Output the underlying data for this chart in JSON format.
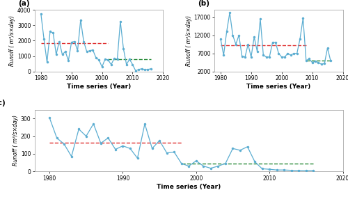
{
  "panel_a": {
    "label": "(a)",
    "years": [
      1980,
      1981,
      1982,
      1983,
      1984,
      1985,
      1986,
      1987,
      1988,
      1989,
      1990,
      1991,
      1992,
      1993,
      1994,
      1995,
      1996,
      1997,
      1998,
      1999,
      2000,
      2001,
      2002,
      2003,
      2004,
      2005,
      2006,
      2007,
      2008,
      2009,
      2010,
      2011,
      2012,
      2013,
      2014,
      2015,
      2016
    ],
    "values": [
      3750,
      2100,
      600,
      2600,
      2500,
      1100,
      1950,
      1100,
      1300,
      700,
      1900,
      1950,
      1350,
      3350,
      1950,
      1300,
      1350,
      1400,
      900,
      750,
      300,
      800,
      750,
      450,
      850,
      800,
      3250,
      1500,
      450,
      800,
      450,
      50,
      130,
      180,
      110,
      130,
      180
    ],
    "red_line_x": [
      1980,
      2002
    ],
    "red_line_y": [
      1850,
      1850
    ],
    "green_line_x": [
      2002,
      2016
    ],
    "green_line_y": [
      820,
      820
    ],
    "ylabel": "Runoff ( m³/s×day)",
    "xlabel": "Time series (Year)",
    "ylim": [
      0,
      4000
    ],
    "yticks": [
      0,
      1000,
      2000,
      3000,
      4000
    ],
    "xlim": [
      1978,
      2020
    ],
    "xticks": [
      1980,
      1990,
      2000,
      2010,
      2020
    ]
  },
  "panel_b": {
    "label": "(b)",
    "years": [
      1980,
      1981,
      1982,
      1983,
      1984,
      1985,
      1986,
      1987,
      1988,
      1989,
      1990,
      1991,
      1992,
      1993,
      1994,
      1995,
      1996,
      1997,
      1998,
      1999,
      2000,
      2001,
      2002,
      2003,
      2004,
      2005,
      2006,
      2007,
      2008,
      2009,
      2010,
      2011,
      2012,
      2013,
      2014,
      2015,
      2016
    ],
    "values": [
      11000,
      6500,
      13000,
      18200,
      12000,
      9500,
      12000,
      6200,
      6000,
      9500,
      6000,
      11500,
      7500,
      16500,
      6500,
      6000,
      6000,
      10000,
      10000,
      7000,
      6000,
      6000,
      7000,
      6500,
      7000,
      7000,
      11000,
      16700,
      5000,
      5500,
      4500,
      4800,
      4500,
      4000,
      4200,
      8500,
      5000
    ],
    "red_line_x": [
      1980,
      2008
    ],
    "red_line_y": [
      9200,
      9200
    ],
    "green_line_x": [
      2008,
      2016
    ],
    "green_line_y": [
      5000,
      5000
    ],
    "ylabel": "Runoff ( m³/s×day)",
    "xlabel": "Time series (Year)",
    "ylim": [
      2000,
      19000
    ],
    "yticks": [
      2000,
      7000,
      12000,
      17000
    ],
    "xlim": [
      1978,
      2020
    ],
    "xticks": [
      1980,
      1990,
      2000,
      2010,
      2020
    ]
  },
  "panel_c": {
    "label": "(c)",
    "years": [
      1980,
      1981,
      1982,
      1983,
      1984,
      1985,
      1986,
      1987,
      1988,
      1989,
      1990,
      1991,
      1992,
      1993,
      1994,
      1995,
      1996,
      1997,
      1998,
      1999,
      2000,
      2001,
      2002,
      2003,
      2004,
      2005,
      2006,
      2007,
      2008,
      2009,
      2010,
      2011,
      2012,
      2013,
      2014,
      2015,
      2016
    ],
    "values": [
      305,
      190,
      155,
      85,
      240,
      200,
      270,
      160,
      190,
      125,
      145,
      130,
      75,
      270,
      130,
      175,
      105,
      110,
      45,
      30,
      60,
      30,
      18,
      30,
      45,
      130,
      120,
      140,
      55,
      15,
      12,
      8,
      8,
      6,
      5,
      4,
      5
    ],
    "red_line_x": [
      1980,
      1998
    ],
    "red_line_y": [
      162,
      162
    ],
    "green_line_x": [
      1998,
      2016
    ],
    "green_line_y": [
      45,
      45
    ],
    "ylabel": "Runoff ( m³/s×day)",
    "xlabel": "Time series (Year)",
    "ylim": [
      0,
      350
    ],
    "yticks": [
      0,
      100,
      200,
      300
    ],
    "xlim": [
      1978,
      2020
    ],
    "xticks": [
      1980,
      1990,
      2000,
      2010,
      2020
    ]
  },
  "line_color": "#5badd1",
  "red_color": "#e03030",
  "green_color": "#2a8c3a",
  "bg_color": "#ffffff",
  "marker": "o",
  "marker_size": 2.2,
  "line_width": 0.9,
  "dash_linewidth": 1.0,
  "spine_color": "#aaaaaa",
  "tick_labelsize": 5.5,
  "xlabel_fontsize": 6.5,
  "ylabel_fontsize": 5.5,
  "label_fontsize": 7.5
}
